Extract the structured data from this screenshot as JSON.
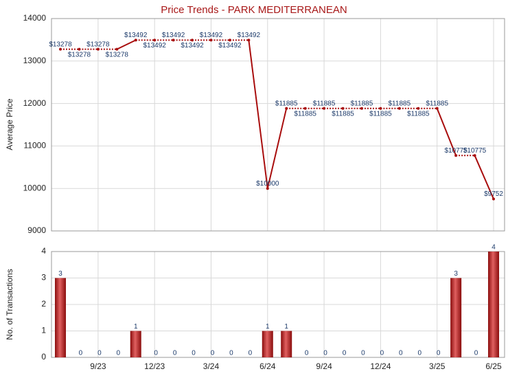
{
  "chart_data": [
    {
      "type": "line",
      "title": "Price Trends - PARK MEDITERRANEAN",
      "ylabel": "Average Price",
      "ylim": [
        9000,
        14000
      ],
      "yticks": [
        9000,
        10000,
        11000,
        12000,
        13000,
        14000
      ],
      "grid": true,
      "color": "#a80c0c",
      "values": [
        13278,
        13278,
        13278,
        13278,
        13492,
        13492,
        13492,
        13492,
        13492,
        13492,
        13492,
        10000,
        11885,
        11885,
        11885,
        11885,
        11885,
        11885,
        11885,
        11885,
        11885,
        10775,
        10775,
        9752
      ],
      "value_labels": [
        "$13278",
        "$13278",
        "$13278",
        "$13278",
        "$13492",
        "$13492",
        "$13492",
        "$13492",
        "$13492",
        "$13492",
        "$13492",
        "$10000",
        "$11885",
        "$11885",
        "$11885",
        "$11885",
        "$11885",
        "$11885",
        "$11885",
        "$11885",
        "$11885",
        "$10775",
        "$10775",
        "$9752"
      ]
    },
    {
      "type": "bar",
      "ylabel": "No. of Transactions",
      "ylim": [
        0,
        4
      ],
      "yticks": [
        0,
        1,
        2,
        3,
        4
      ],
      "grid": true,
      "color": "#b01818",
      "categories": [
        null,
        null,
        "9/23",
        null,
        null,
        "12/23",
        null,
        null,
        "3/24",
        null,
        null,
        "6/24",
        null,
        null,
        "9/24",
        null,
        null,
        "12/24",
        null,
        null,
        "3/25",
        null,
        null,
        "6/25"
      ],
      "values": [
        3,
        0,
        0,
        0,
        1,
        0,
        0,
        0,
        0,
        0,
        0,
        1,
        1,
        0,
        0,
        0,
        0,
        0,
        0,
        0,
        0,
        3,
        0,
        4
      ]
    }
  ]
}
